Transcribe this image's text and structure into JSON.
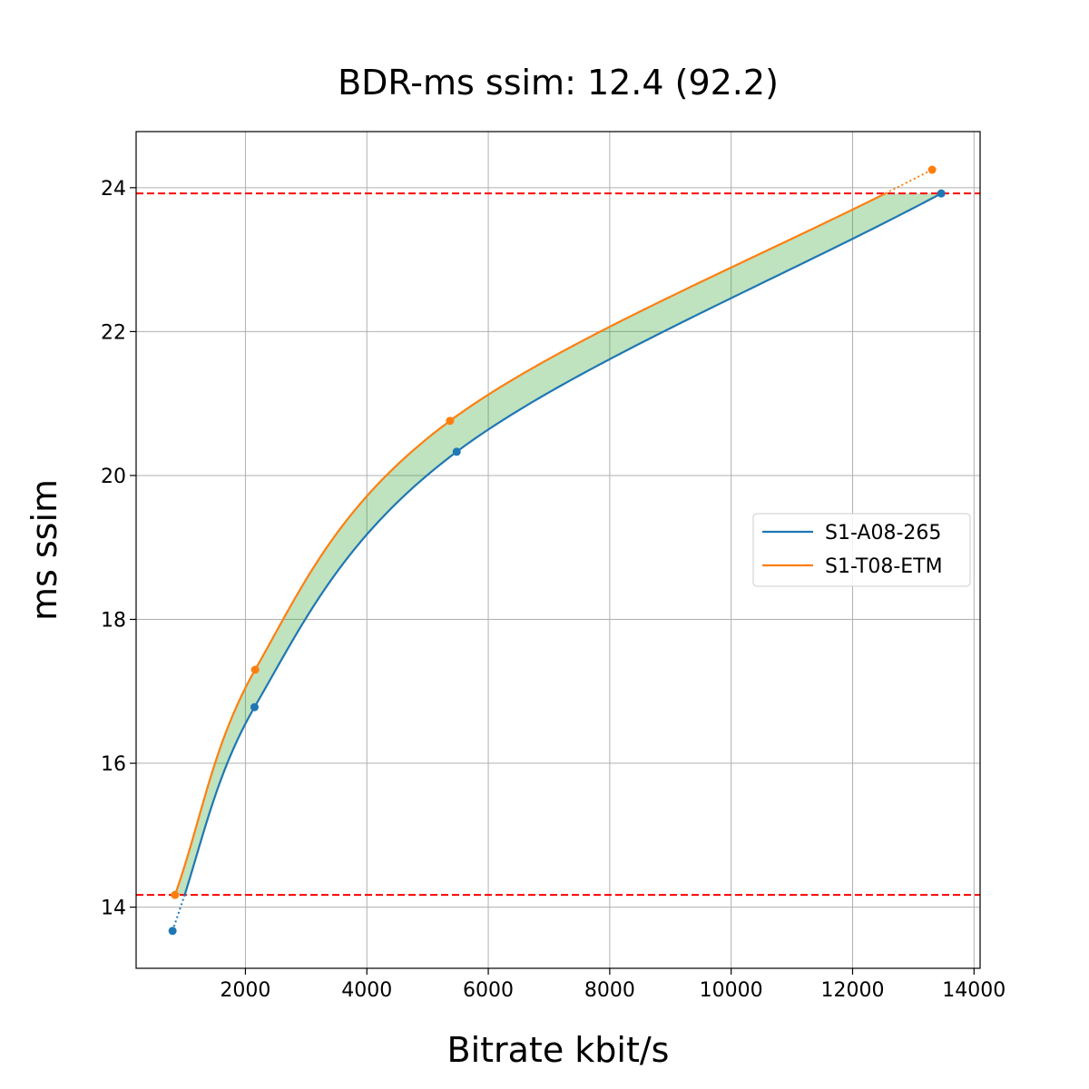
{
  "chart_data": {
    "type": "line",
    "title": "BDR-ms ssim: 12.4 (92.2)",
    "xlabel": "Bitrate kbit/s",
    "ylabel": "ms ssim",
    "xlim": [
      200,
      14100
    ],
    "ylim": [
      13.15,
      24.78
    ],
    "xticks": [
      2000,
      4000,
      6000,
      8000,
      10000,
      12000,
      14000
    ],
    "yticks": [
      14,
      16,
      18,
      20,
      22,
      24
    ],
    "grid": true,
    "legend_position": "center-right",
    "hlines": [
      {
        "y": 23.92,
        "color": "#ff0000",
        "style": "dashed"
      },
      {
        "y": 14.17,
        "color": "#ff0000",
        "style": "dashed"
      }
    ],
    "fill_between": {
      "color": "#2ca02c",
      "opacity": 0.3,
      "y_from": 14.17,
      "y_to": 23.92
    },
    "series": [
      {
        "name": "S1-A08-265",
        "color": "#1f77b4",
        "points": [
          [
            800,
            13.67
          ],
          [
            2150,
            16.78
          ],
          [
            5480,
            20.33
          ],
          [
            13460,
            23.92
          ]
        ]
      },
      {
        "name": "S1-T08-ETM",
        "color": "#ff7f0e",
        "points": [
          [
            840,
            14.17
          ],
          [
            2160,
            17.3
          ],
          [
            5370,
            20.76
          ],
          [
            13310,
            24.25
          ]
        ]
      }
    ]
  }
}
